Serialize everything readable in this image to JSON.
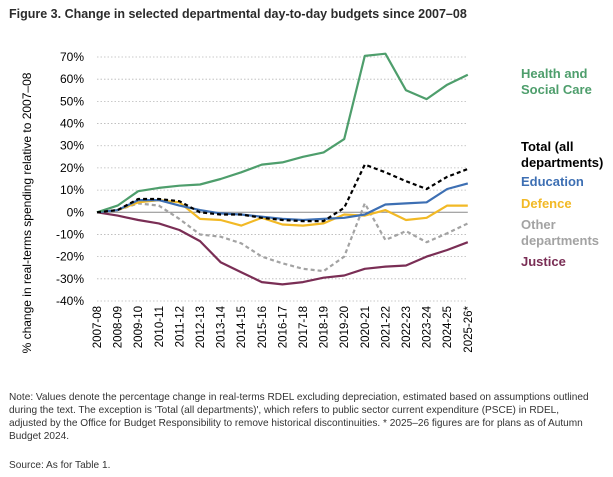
{
  "title": "Figure 3. Change in selected departmental day-to-day budgets since 2007–08",
  "note": "Note: Values denote the percentage change in real-terms RDEL excluding depreciation, estimated based on assumptions outlined during the text. The exception is 'Total (all departments)', which refers to public sector current expenditure (PSCE) in RDEL, adjusted by the Office for Budget Responsibility to remove historical discontinuities. * 2025–26 figures are for plans as of Autumn Budget 2024.",
  "source": "Source: As for Table 1.",
  "colors": {
    "health": "#4e9e6c",
    "total": "#000000",
    "education": "#3d6fb3",
    "defence": "#f2b925",
    "other": "#a3a3a3",
    "justice": "#7a2e55"
  },
  "chart_data": {
    "type": "line",
    "ylabel": "% change in real-terms spending relative to 2007–08",
    "ylim": [
      -40,
      70
    ],
    "yticks": [
      "70%",
      "60%",
      "50%",
      "40%",
      "30%",
      "20%",
      "10%",
      "0%",
      "-10%",
      "-20%",
      "-30%",
      "-40%"
    ],
    "grid": "horizontal dotted",
    "categories": [
      "2007-08",
      "2008-09",
      "2009-10",
      "2010-11",
      "2011-12",
      "2012-13",
      "2013-14",
      "2014-15",
      "2015-16",
      "2016-17",
      "2017-18",
      "2018-19",
      "2019-20",
      "2020-21",
      "2021-22",
      "2022-23",
      "2023-24",
      "2024-25",
      "2025-26*"
    ],
    "series": [
      {
        "key": "health",
        "name": "Health and Social Care",
        "style": "solid",
        "values": [
          0,
          3,
          9.5,
          11,
          12,
          12.5,
          15,
          18,
          21.5,
          22.5,
          25,
          27,
          33,
          70.5,
          71.5,
          55,
          51,
          57.5,
          62
        ]
      },
      {
        "key": "total",
        "name": "Total (all departments)",
        "style": "dashed",
        "values": [
          0,
          1,
          6,
          6,
          5,
          0,
          -1,
          -1,
          -2.5,
          -3.5,
          -4,
          -4,
          2,
          21.5,
          18,
          14,
          10.5,
          16,
          19.5
        ]
      },
      {
        "key": "education",
        "name": "Education",
        "style": "solid",
        "values": [
          0,
          1,
          5.5,
          5.5,
          3,
          1,
          -0.5,
          -1,
          -2,
          -3,
          -3.5,
          -3,
          -2.5,
          -1,
          3.5,
          4,
          4.5,
          10.5,
          13
        ]
      },
      {
        "key": "defence",
        "name": "Defence",
        "style": "solid",
        "values": [
          0,
          1,
          4.5,
          5.5,
          4.5,
          -3,
          -3.5,
          -6,
          -2.5,
          -5.5,
          -6,
          -5,
          -1,
          -1.5,
          1,
          -3.5,
          -2.5,
          3,
          3
        ]
      },
      {
        "key": "other",
        "name": "Other departments",
        "style": "dashed",
        "values": [
          0,
          1,
          4,
          3,
          -3,
          -10,
          -11,
          -14,
          -20,
          -23,
          -25.5,
          -26.5,
          -20,
          4,
          -12.5,
          -8.5,
          -13.5,
          -9.5,
          -5
        ]
      },
      {
        "key": "justice",
        "name": "Justice",
        "style": "solid",
        "values": [
          0,
          -1.5,
          -3.5,
          -5,
          -8,
          -13,
          -22.5,
          -27,
          -31.5,
          -32.5,
          -31.5,
          -29.5,
          -28.5,
          -25.5,
          -24.5,
          -24,
          -20,
          -17,
          -13.5
        ]
      }
    ],
    "legend": [
      {
        "key": "health",
        "lines": [
          "Health and",
          "Social Care"
        ]
      },
      {
        "key": "total",
        "lines": [
          "Total (all",
          "departments)"
        ]
      },
      {
        "key": "education",
        "lines": [
          "Education"
        ]
      },
      {
        "key": "defence",
        "lines": [
          "Defence"
        ]
      },
      {
        "key": "other",
        "lines": [
          "Other",
          "departments"
        ]
      },
      {
        "key": "justice",
        "lines": [
          "Justice"
        ]
      }
    ],
    "legend_placement": "right, beside line ends"
  }
}
